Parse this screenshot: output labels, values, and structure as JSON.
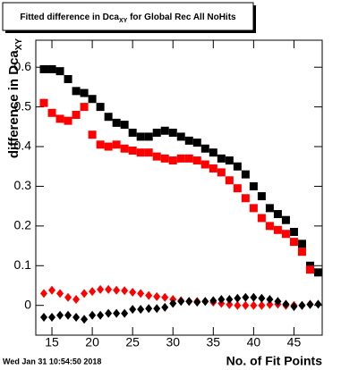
{
  "chart_data": {
    "type": "scatter",
    "title": {
      "text": "Fitted difference in Dca",
      "sub": "XY",
      "rest": " for Global Rec All NoHits"
    },
    "y_label": {
      "text": "difference in Dca",
      "sub": "XY"
    },
    "x_label": "No. of Fit Points",
    "timestamp": "Wed Jan 31 10:54:50 2018",
    "xlim": [
      13,
      48.5
    ],
    "ylim": [
      -0.075,
      0.668
    ],
    "xticks": [
      15,
      20,
      25,
      30,
      35,
      40,
      45
    ],
    "yticks": [
      0,
      0.1,
      0.2,
      0.3,
      0.4,
      0.5,
      0.6
    ],
    "x": [
      14,
      15,
      16,
      17,
      18,
      19,
      20,
      21,
      22,
      23,
      24,
      25,
      26,
      27,
      28,
      29,
      30,
      31,
      32,
      33,
      34,
      35,
      36,
      37,
      38,
      39,
      40,
      41,
      42,
      43,
      44,
      45,
      46,
      47,
      48
    ],
    "series": [
      {
        "color": "#000000",
        "marker": "square",
        "values": [
          0.595,
          0.595,
          0.59,
          0.57,
          0.54,
          0.535,
          0.52,
          0.5,
          0.475,
          0.46,
          0.455,
          0.435,
          0.425,
          0.425,
          0.435,
          0.44,
          0.435,
          0.425,
          0.415,
          0.41,
          0.395,
          0.385,
          0.37,
          0.365,
          0.35,
          0.33,
          0.3,
          0.275,
          0.245,
          0.23,
          0.215,
          0.185,
          0.155,
          0.1,
          0.083
        ]
      },
      {
        "color": "#ff0000",
        "marker": "square",
        "values": [
          0.51,
          0.485,
          0.47,
          0.465,
          0.48,
          0.5,
          0.43,
          0.405,
          0.4,
          0.405,
          0.395,
          0.39,
          0.385,
          0.385,
          0.375,
          0.37,
          0.365,
          0.37,
          0.37,
          0.365,
          0.355,
          0.345,
          0.335,
          0.315,
          0.295,
          0.27,
          0.245,
          0.22,
          0.2,
          0.19,
          0.18,
          0.16,
          0.135,
          0.09,
          null
        ]
      },
      {
        "color": "#ff0000",
        "marker": "diamond",
        "values": [
          0.03,
          0.038,
          0.03,
          0.02,
          0.015,
          0.03,
          0.035,
          0.04,
          0.04,
          0.038,
          0.037,
          0.033,
          0.03,
          0.025,
          0.022,
          0.02,
          0.015,
          0.012,
          0.01,
          0.01,
          0.01,
          0.008,
          0.005,
          0.002,
          0,
          0,
          0,
          0,
          0.002,
          0.003,
          0,
          0,
          0,
          0.003,
          null
        ]
      },
      {
        "color": "#000000",
        "marker": "diamond",
        "values": [
          -0.03,
          -0.03,
          -0.025,
          -0.025,
          -0.03,
          -0.035,
          -0.025,
          -0.025,
          -0.02,
          -0.02,
          -0.02,
          -0.01,
          -0.01,
          -0.008,
          -0.008,
          -0.005,
          0.005,
          0.01,
          0.01,
          0.008,
          0.01,
          0.012,
          0.015,
          0.015,
          0.018,
          0.02,
          0.02,
          0.018,
          0.015,
          0.01,
          0.003,
          -0.003,
          0,
          0.002,
          0.003
        ]
      }
    ]
  }
}
